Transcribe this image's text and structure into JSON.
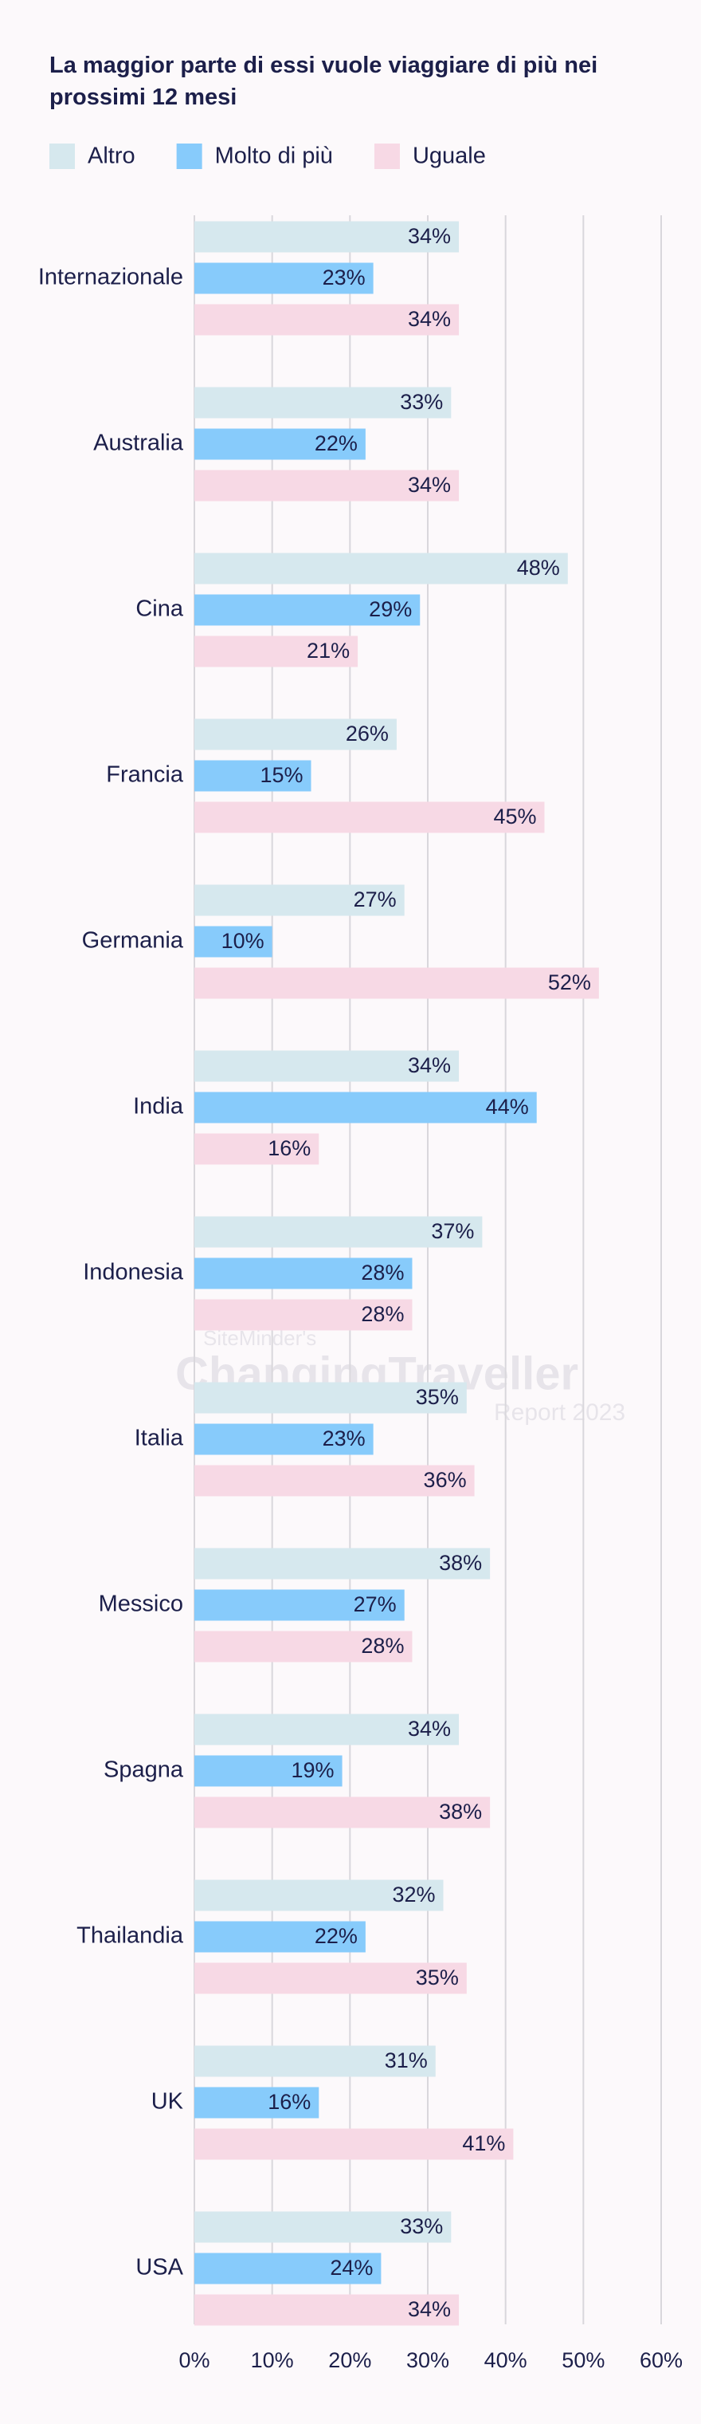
{
  "chart_data": {
    "type": "hbar",
    "title": "La maggior parte di essi vuole viaggiare di più nei prossimi 12 mesi",
    "watermark": [
      "SiteMinder's",
      "ChangingTraveller",
      "Report 2023"
    ],
    "categories": [
      "Internazionale",
      "Australia",
      "Cina",
      "Francia",
      "Germania",
      "India",
      "Indonesia",
      "Italia",
      "Messico",
      "Spagna",
      "Thailandia",
      "UK",
      "USA"
    ],
    "series": [
      {
        "name": "Altro",
        "color": "#d6e8ee",
        "values": [
          34,
          33,
          48,
          26,
          27,
          34,
          37,
          35,
          38,
          34,
          32,
          31,
          33
        ],
        "value_labels": [
          "34%",
          "33%",
          "48%",
          "26%",
          "27%",
          "34%",
          "37%",
          "35%",
          "38%",
          "34%",
          "32%",
          "31%",
          "33%"
        ]
      },
      {
        "name": "Molto di più",
        "color": "#87cbfb",
        "values": [
          23,
          22,
          29,
          15,
          10,
          44,
          28,
          23,
          27,
          19,
          22,
          16,
          24
        ],
        "value_labels": [
          "23%",
          "22%",
          "29%",
          "15%",
          "10%",
          "44%",
          "28%",
          "23%",
          "27%",
          "19%",
          "22%",
          "16%",
          "24%"
        ]
      },
      {
        "name": "Uguale",
        "color": "#f7d9e5",
        "values": [
          34,
          34,
          21,
          45,
          52,
          16,
          28,
          36,
          28,
          38,
          35,
          41,
          34
        ],
        "value_labels": [
          "34%",
          "34%",
          "21%",
          "45%",
          "52%",
          "16%",
          "28%",
          "36%",
          "28%",
          "38%",
          "35%",
          "41%",
          "34%"
        ]
      }
    ],
    "xlim": [
      0,
      60
    ],
    "xticks": [
      {
        "value": 0,
        "label": "0%"
      },
      {
        "value": 10,
        "label": "10%"
      },
      {
        "value": 20,
        "label": "20%"
      },
      {
        "value": 30,
        "label": "30%"
      },
      {
        "value": 40,
        "label": "40%"
      },
      {
        "value": 50,
        "label": "50%"
      },
      {
        "value": 60,
        "label": "60%"
      }
    ],
    "grid": true,
    "legend": "top-left"
  }
}
